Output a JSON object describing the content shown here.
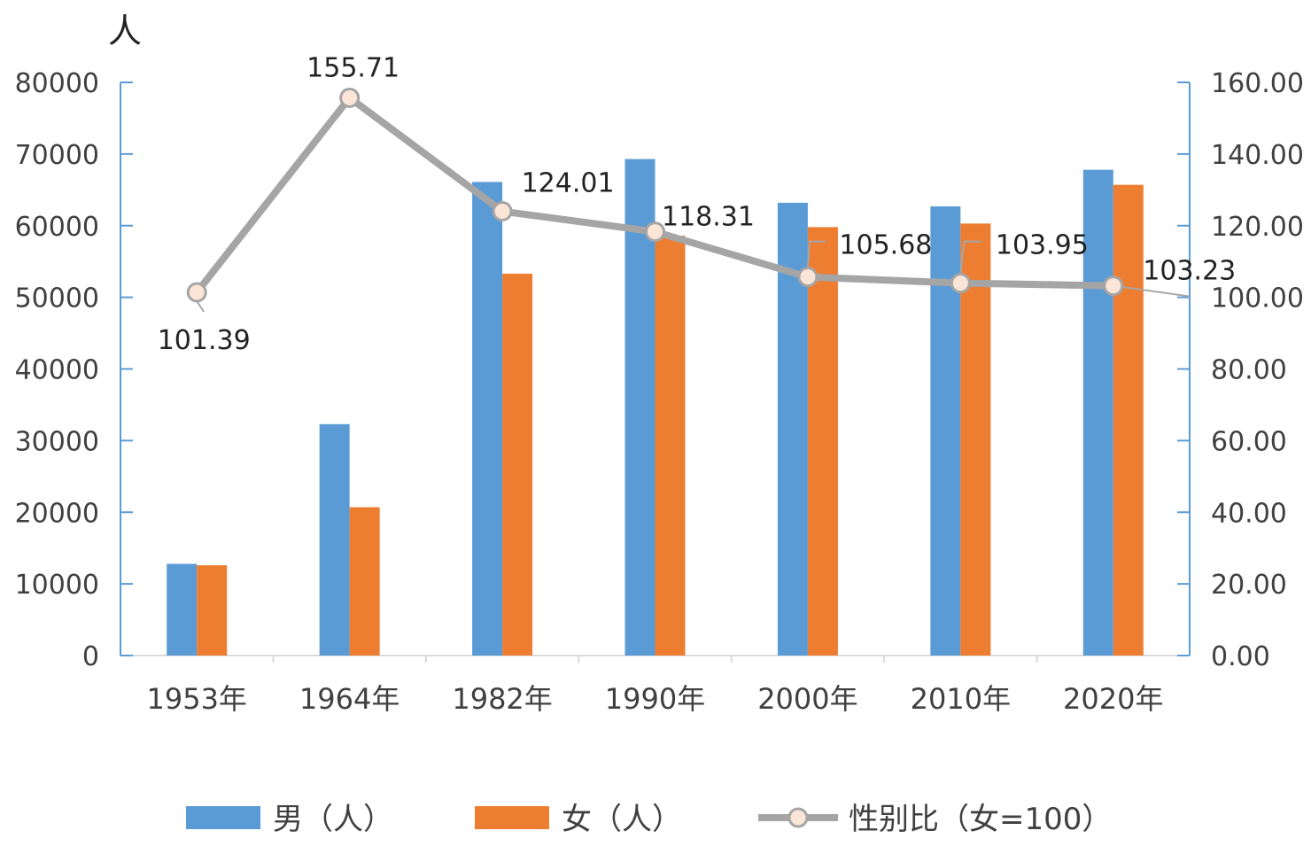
{
  "chart_data": {
    "type": "bar",
    "unit_label": "人",
    "categories": [
      "1953年",
      "1964年",
      "1982年",
      "1990年",
      "2000年",
      "2010年",
      "2020年"
    ],
    "series": [
      {
        "name": "男（人）",
        "type": "bar",
        "axis": "left",
        "color": "#5B9BD5",
        "values": [
          12800,
          32300,
          66100,
          69300,
          63200,
          62700,
          67800
        ]
      },
      {
        "name": "女（人）",
        "type": "bar",
        "axis": "left",
        "color": "#ED7D31",
        "values": [
          12600,
          20700,
          53300,
          58600,
          59800,
          60300,
          65700
        ]
      },
      {
        "name": "性别比（女=100）",
        "type": "line",
        "axis": "right",
        "color": "#A5A5A5",
        "marker_fill": "#FBE5D6",
        "values": [
          101.39,
          155.71,
          124.01,
          118.31,
          105.68,
          103.95,
          103.23
        ],
        "labels": [
          "101.39",
          "155.71",
          "124.01",
          "118.31",
          "105.68",
          "103.95",
          "103.23"
        ]
      }
    ],
    "y_left": {
      "range": [
        0,
        80000
      ],
      "ticks": [
        "0",
        "10000",
        "20000",
        "30000",
        "40000",
        "50000",
        "60000",
        "70000",
        "80000"
      ]
    },
    "y_right": {
      "range": [
        0,
        160
      ],
      "ticks": [
        "0.00",
        "20.00",
        "40.00",
        "60.00",
        "80.00",
        "100.00",
        "120.00",
        "140.00",
        "160.00"
      ]
    },
    "axis_color": "#5B9BD5",
    "grid": false,
    "legend_position": "bottom"
  }
}
